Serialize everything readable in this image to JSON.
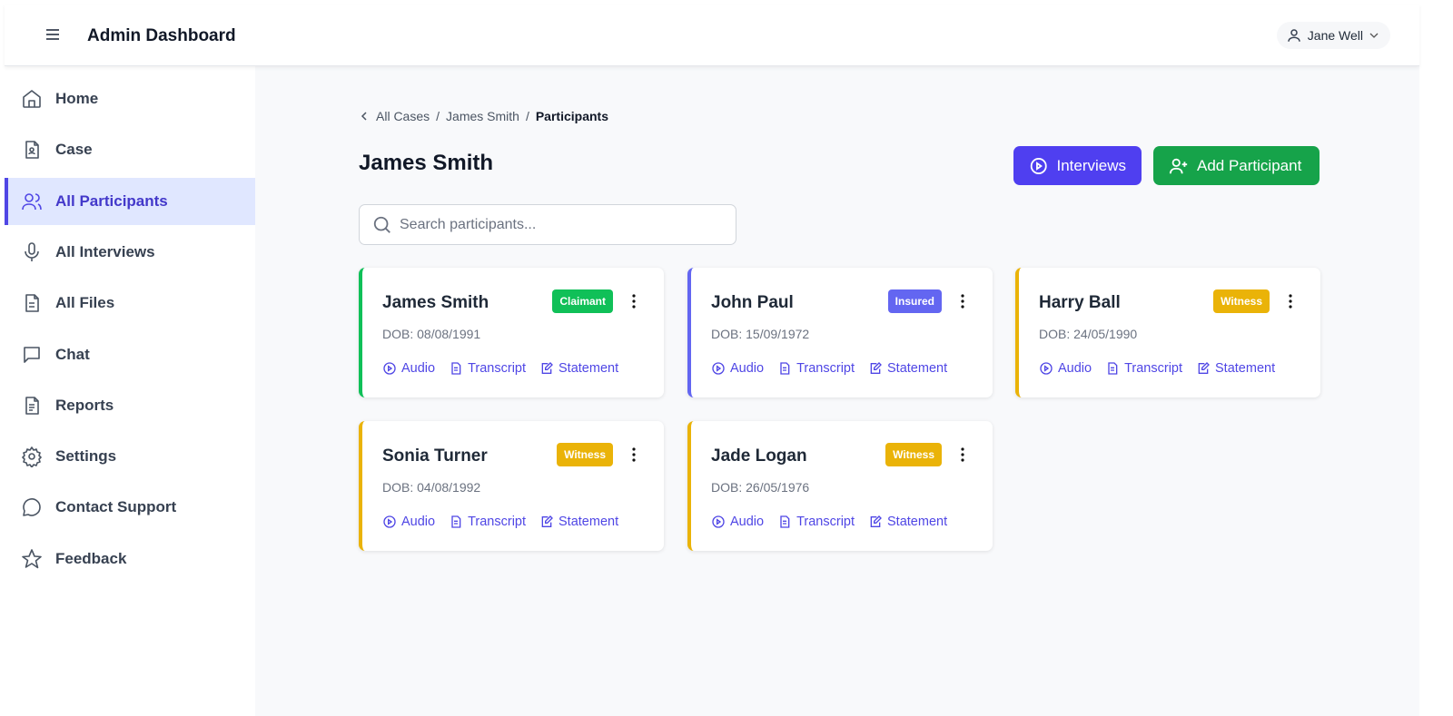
{
  "header": {
    "title": "Admin Dashboard",
    "user": "Jane Well"
  },
  "sidebar": {
    "items": [
      {
        "label": "Home",
        "icon": "home-icon"
      },
      {
        "label": "Case",
        "icon": "case-file-icon"
      },
      {
        "label": "All Participants",
        "icon": "users-icon",
        "active": true
      },
      {
        "label": "All Interviews",
        "icon": "microphone-icon"
      },
      {
        "label": "All Files",
        "icon": "file-icon"
      },
      {
        "label": "Chat",
        "icon": "chat-icon"
      },
      {
        "label": "Reports",
        "icon": "report-icon"
      },
      {
        "label": "Settings",
        "icon": "gear-icon"
      },
      {
        "label": "Contact Support",
        "icon": "message-circle-icon"
      },
      {
        "label": "Feedback",
        "icon": "star-icon"
      }
    ]
  },
  "breadcrumb": [
    "All Cases",
    "James Smith",
    "Participants"
  ],
  "page": {
    "title": "James Smith",
    "interviews_label": "Interviews",
    "add_label": "Add Participant",
    "search_placeholder": "Search participants..."
  },
  "colors": {
    "accent": "#4f3ff0",
    "green": "#16a34a",
    "claimant": "#10c058",
    "insured": "#6366f1",
    "witness": "#eab308"
  },
  "link_labels": {
    "audio": "Audio",
    "transcript": "Transcript",
    "statement": "Statement"
  },
  "participants": [
    {
      "name": "James Smith",
      "role": "Claimant",
      "dob": "DOB: 08/08/1991",
      "color": "#10c058"
    },
    {
      "name": "John Paul",
      "role": "Insured",
      "dob": "DOB: 15/09/1972",
      "color": "#6366f1"
    },
    {
      "name": "Harry Ball",
      "role": "Witness",
      "dob": "DOB: 24/05/1990",
      "color": "#eab308"
    },
    {
      "name": "Sonia Turner",
      "role": "Witness",
      "dob": "DOB: 04/08/1992",
      "color": "#eab308"
    },
    {
      "name": "Jade Logan",
      "role": "Witness",
      "dob": "DOB: 26/05/1976",
      "color": "#eab308"
    }
  ]
}
